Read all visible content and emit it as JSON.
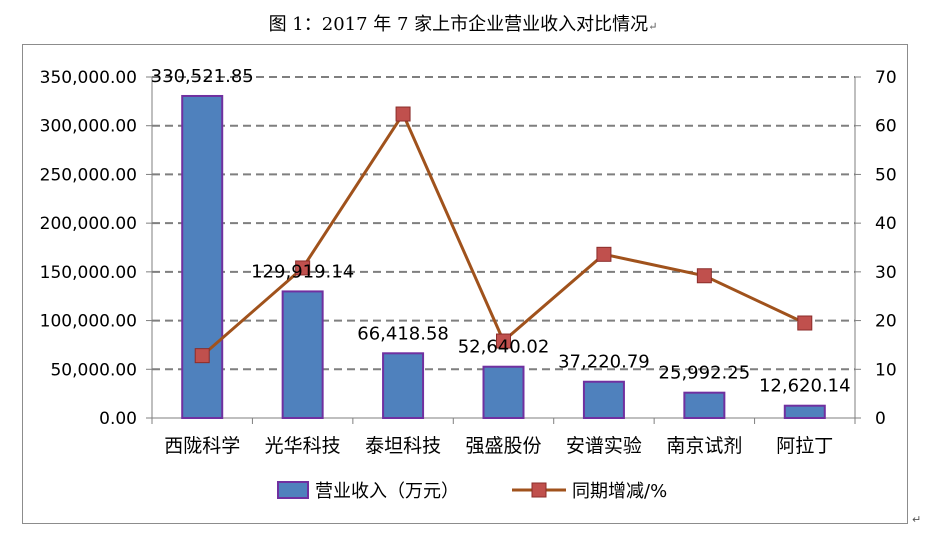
{
  "figure": {
    "caption": "图 1：2017 年 7 家上市企业营业收入对比情况",
    "caption_mark": "↵",
    "end_mark": "↵"
  },
  "chart_data": {
    "type": "bar+line",
    "categories": [
      "西陇科学",
      "光华科技",
      "泰坦科技",
      "强盛股份",
      "安谱实验",
      "南京试剂",
      "阿拉丁"
    ],
    "series": [
      {
        "name": "营业收入（万元）",
        "type": "bar",
        "axis": "left",
        "color": "#4f81bd",
        "border_color": "#7030a0",
        "values": [
          330521.85,
          129919.14,
          66418.58,
          52640.02,
          37220.79,
          25992.25,
          12620.14
        ],
        "data_labels": [
          "330,521.85",
          "129,919.14",
          "66,418.58",
          "52,640.02",
          "37,220.79",
          "25,992.25",
          "12,620.14"
        ]
      },
      {
        "name": "同期增减/%",
        "type": "line",
        "axis": "right",
        "color": "#a0521c",
        "marker_color": "#c0504d",
        "values": [
          12.8,
          30.8,
          62.4,
          15.8,
          33.6,
          29.2,
          19.5
        ]
      }
    ],
    "y_left": {
      "range": [
        0,
        350000
      ],
      "ticks": [
        "0.00",
        "50,000.00",
        "100,000.00",
        "150,000.00",
        "200,000.00",
        "250,000.00",
        "300,000.00",
        "350,000.00"
      ]
    },
    "y_right": {
      "range": [
        0,
        70
      ],
      "ticks": [
        "0",
        "10",
        "20",
        "30",
        "40",
        "50",
        "60",
        "70"
      ]
    },
    "grid": "horizontal-dashed",
    "legend_position": "bottom"
  }
}
